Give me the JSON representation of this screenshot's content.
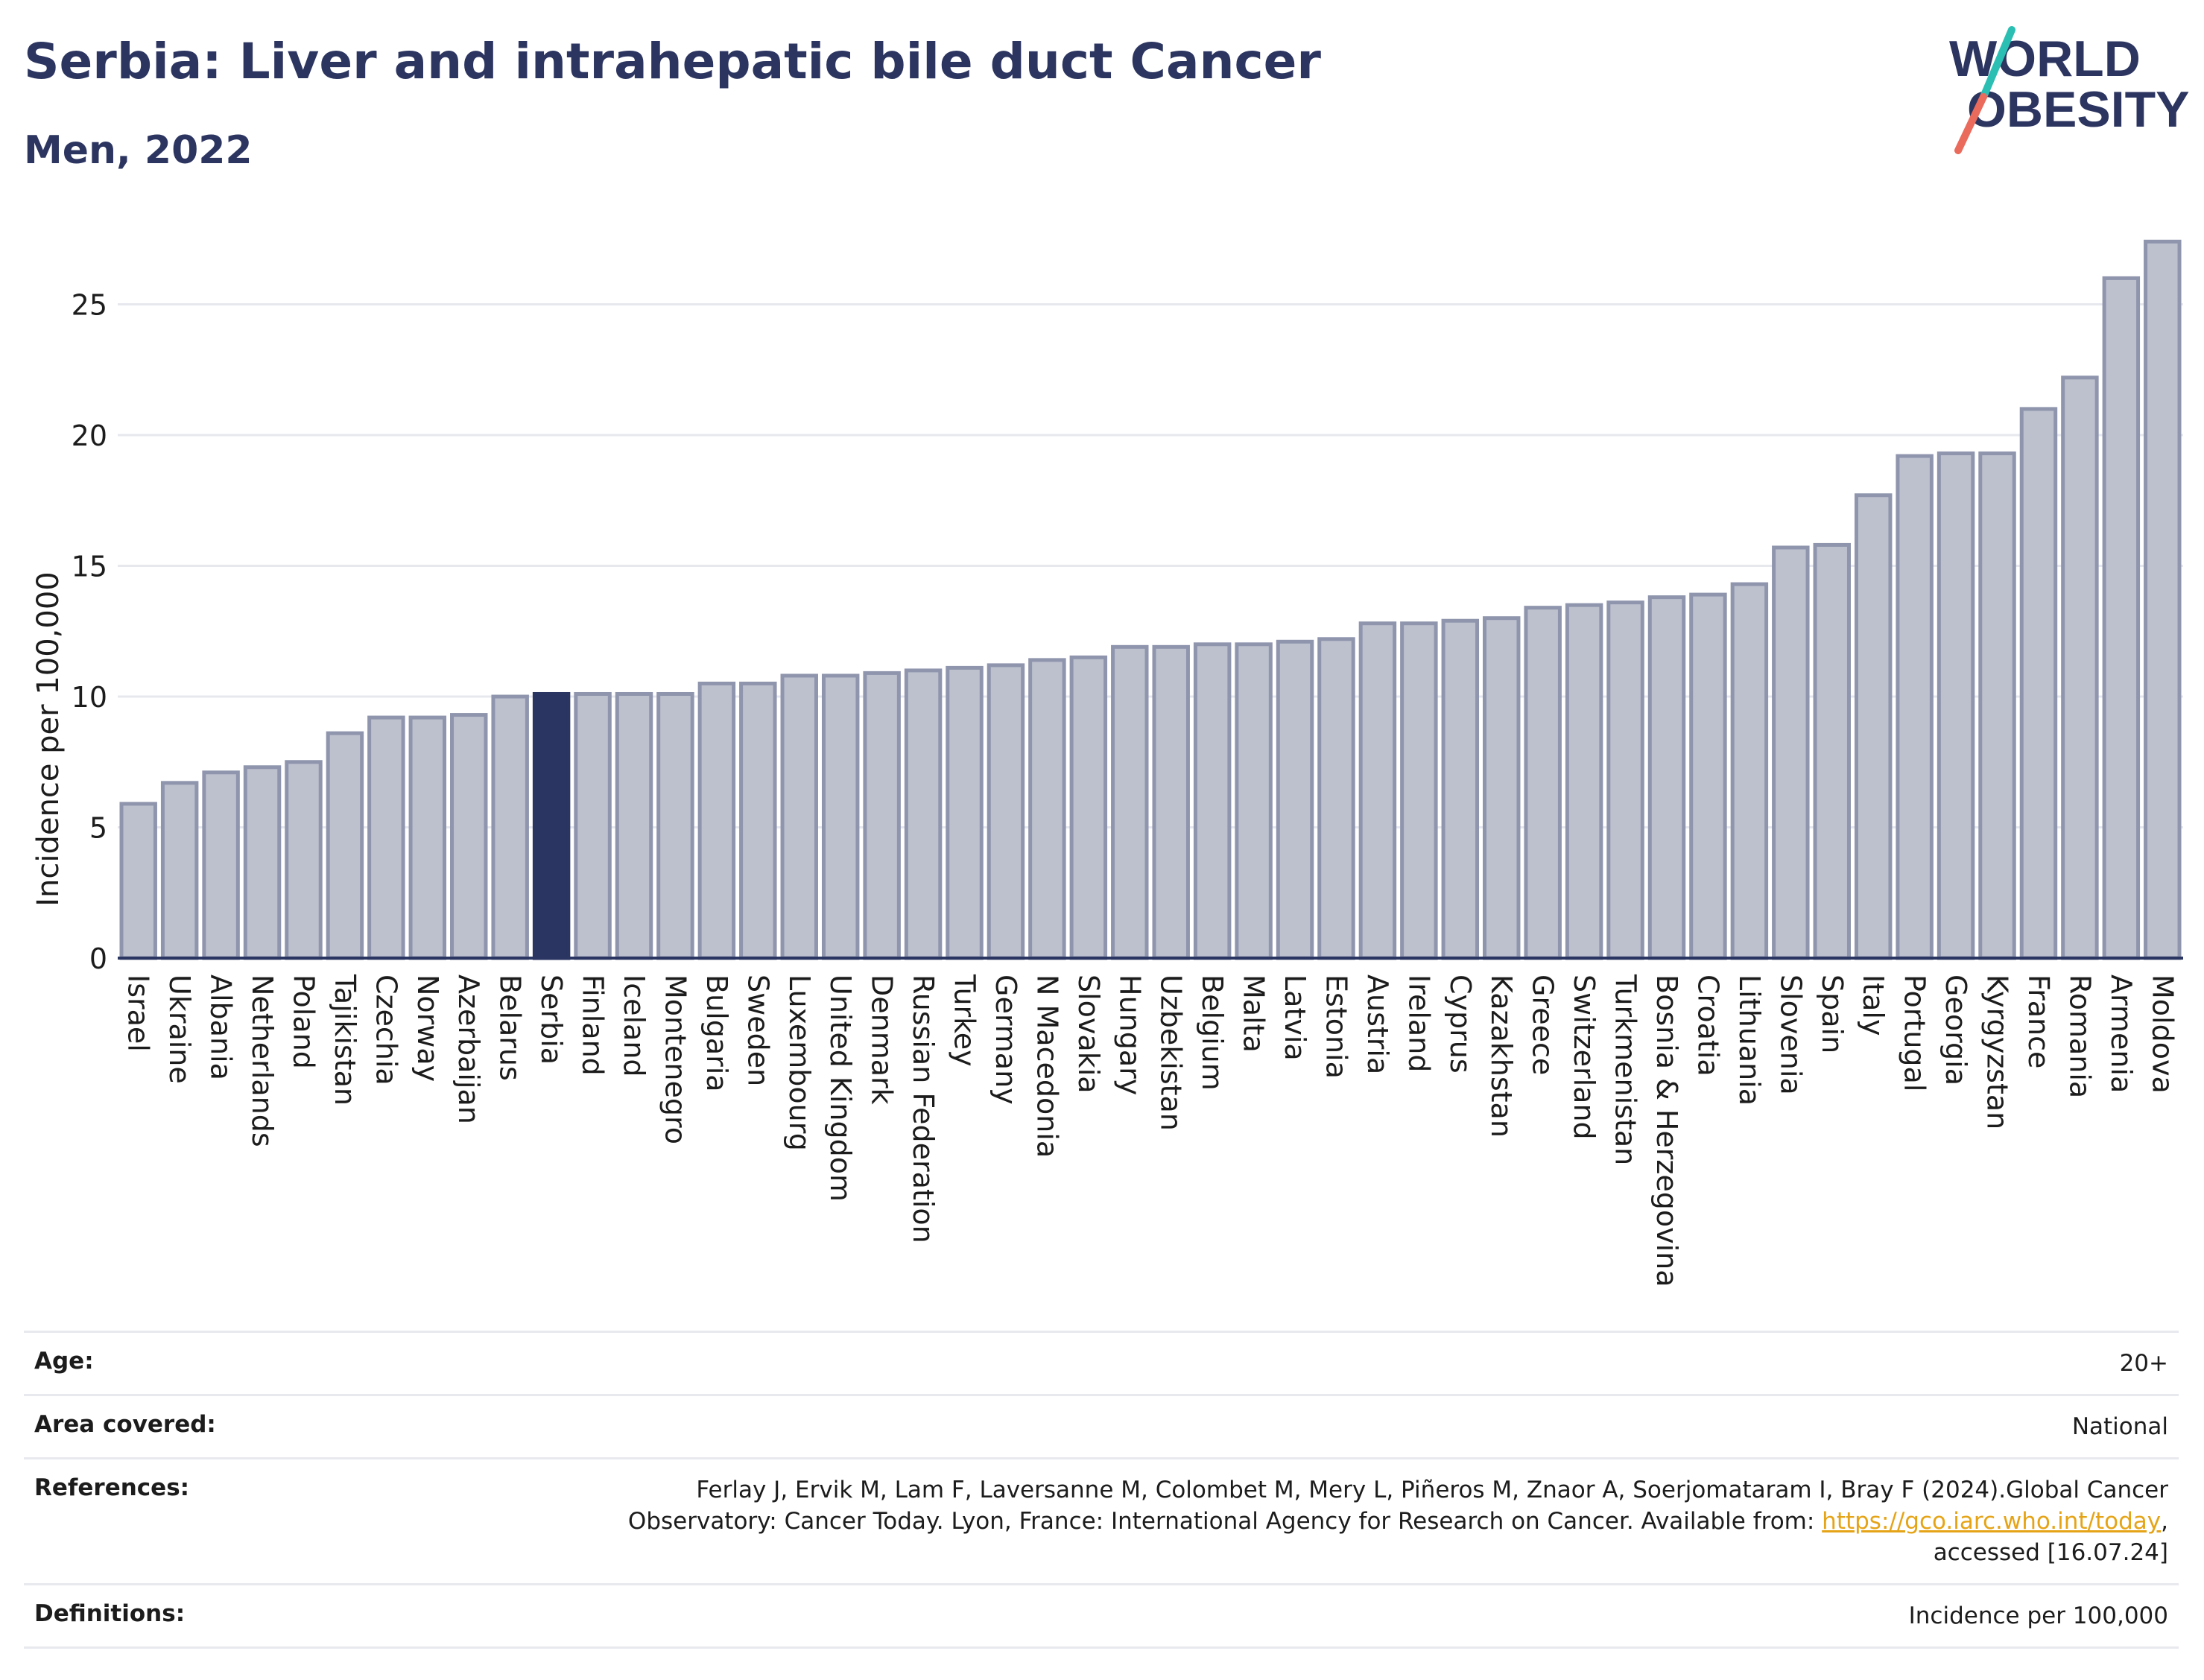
{
  "title": "Serbia: Liver and intrahepatic bile duct Cancer",
  "subtitle": "Men, 2022",
  "logo": {
    "line1": "WORLD",
    "line2": "OBESITY"
  },
  "colors": {
    "highlight": "#2a3561",
    "bar": "#bdc1ce",
    "bar_edge": "#8f95ad",
    "title": "#2c3560"
  },
  "chart_data": {
    "type": "bar",
    "ylabel": "Incidence per 100,000",
    "xlabel": "",
    "ylim": [
      0,
      27.5
    ],
    "yticks": [
      0,
      5,
      10,
      15,
      20,
      25
    ],
    "highlight": "Serbia",
    "grid": true,
    "categories": [
      "Israel",
      "Ukraine",
      "Albania",
      "Netherlands",
      "Poland",
      "Tajikistan",
      "Czechia",
      "Norway",
      "Azerbaijan",
      "Belarus",
      "Serbia",
      "Finland",
      "Iceland",
      "Montenegro",
      "Bulgaria",
      "Sweden",
      "Luxembourg",
      "United Kingdom",
      "Denmark",
      "Russian Federation",
      "Turkey",
      "Germany",
      "N Macedonia",
      "Slovakia",
      "Hungary",
      "Uzbekistan",
      "Belgium",
      "Malta",
      "Latvia",
      "Estonia",
      "Austria",
      "Ireland",
      "Cyprus",
      "Kazakhstan",
      "Greece",
      "Switzerland",
      "Turkmenistan",
      "Bosnia & Herzegovina",
      "Croatia",
      "Lithuania",
      "Slovenia",
      "Spain",
      "Italy",
      "Portugal",
      "Georgia",
      "Kyrgyzstan",
      "France",
      "Romania",
      "Armenia",
      "Moldova"
    ],
    "values": [
      5.9,
      6.7,
      7.1,
      7.3,
      7.5,
      8.6,
      9.2,
      9.2,
      9.3,
      10.0,
      10.1,
      10.1,
      10.1,
      10.1,
      10.5,
      10.5,
      10.8,
      10.8,
      10.9,
      11.0,
      11.1,
      11.2,
      11.4,
      11.5,
      11.9,
      11.9,
      12.0,
      12.0,
      12.1,
      12.2,
      12.8,
      12.8,
      12.9,
      13.0,
      13.4,
      13.5,
      13.6,
      13.8,
      13.9,
      14.3,
      15.7,
      15.8,
      17.7,
      19.2,
      19.3,
      19.3,
      21.0,
      22.2,
      26.0,
      27.4
    ]
  },
  "info": {
    "age": {
      "label": "Age:",
      "value": "20+"
    },
    "area": {
      "label": "Area covered:",
      "value": "National"
    },
    "references": {
      "label": "References:",
      "line1": "Ferlay J, Ervik M, Lam F, Laversanne M, Colombet M, Mery L, Piñeros M, Znaor A, Soerjomataram I, Bray F (2024).Global Cancer",
      "line2_pre": "Observatory: Cancer Today. Lyon, France: International Agency for Research on Cancer. Available from: ",
      "link": "https://gco.iarc.who.int/today",
      "line2_post": ",",
      "line3": "accessed [16.07.24]"
    },
    "definitions": {
      "label": "Definitions:",
      "value": "Incidence per 100,000"
    }
  }
}
